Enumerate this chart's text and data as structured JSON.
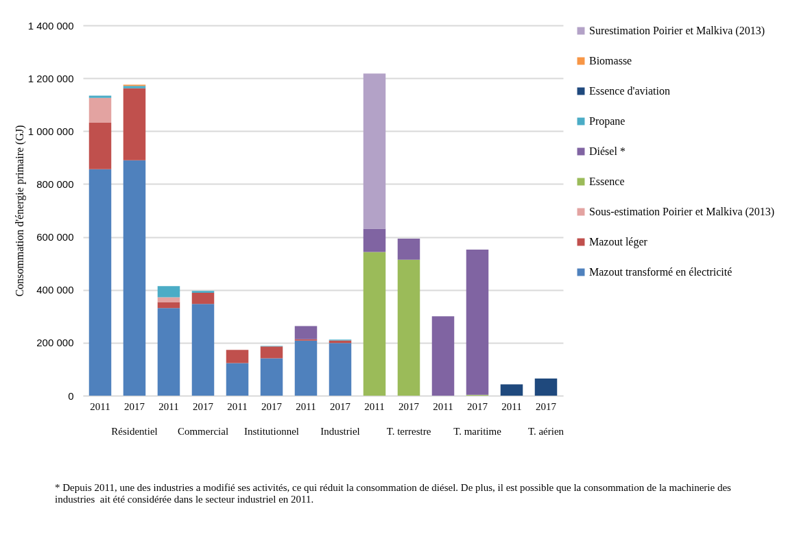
{
  "chart_data": {
    "type": "bar",
    "stacked": true,
    "ylabel": "Consommation d'énergie primaire (GJ)",
    "categories": [
      "2011",
      "2017",
      "2011",
      "2017",
      "2011",
      "2017",
      "2011",
      "2017",
      "2011",
      "2017",
      "2011",
      "2017",
      "2011",
      "2017"
    ],
    "series": [
      {
        "name": "Mazout transformé en électricité",
        "color": "#4f81bd",
        "values": [
          856000,
          890000,
          331000,
          347000,
          123000,
          141000,
          208000,
          199000,
          null,
          null,
          null,
          null,
          null,
          null
        ]
      },
      {
        "name": "Mazout léger",
        "color": "#c0504d",
        "values": [
          176000,
          272000,
          23000,
          42000,
          50000,
          45000,
          5000,
          10000,
          null,
          null,
          null,
          null,
          null,
          null
        ]
      },
      {
        "name": "Sous-estimation Poirier et Malkiva (2013)",
        "color": "#e3a3a1",
        "values": [
          94000,
          null,
          18000,
          null,
          null,
          null,
          null,
          null,
          null,
          null,
          null,
          null,
          null,
          null
        ]
      },
      {
        "name": "Essence",
        "color": "#9bbb59",
        "values": [
          null,
          null,
          null,
          null,
          null,
          null,
          null,
          null,
          543000,
          514000,
          null,
          3000,
          null,
          null
        ]
      },
      {
        "name": "Diésel *",
        "color": "#8064a2",
        "values": [
          null,
          null,
          null,
          null,
          null,
          null,
          50000,
          null,
          88000,
          80000,
          300000,
          549000,
          null,
          null
        ]
      },
      {
        "name": "Propane",
        "color": "#4bacc6",
        "values": [
          8000,
          9000,
          42000,
          7000,
          null,
          2000,
          null,
          3000,
          null,
          null,
          null,
          null,
          null,
          null
        ]
      },
      {
        "name": "Essence d'aviation",
        "color": "#1f497d",
        "values": [
          null,
          null,
          null,
          null,
          null,
          null,
          null,
          null,
          null,
          null,
          null,
          null,
          43000,
          65000
        ]
      },
      {
        "name": "Biomasse",
        "color": "#f79646",
        "values": [
          null,
          5000,
          null,
          null,
          null,
          null,
          null,
          null,
          null,
          null,
          null,
          null,
          null,
          null
        ]
      },
      {
        "name": "Surestimation Poirier et Malkiva (2013)",
        "color": "#b3a2c7",
        "values": [
          null,
          null,
          null,
          null,
          null,
          null,
          null,
          null,
          587000,
          null,
          null,
          null,
          null,
          null
        ]
      }
    ],
    "ylim": [
      0,
      1400000
    ],
    "yticks": [
      0,
      {
        "value": 200000,
        "label": "200 000"
      },
      {
        "value": 400000,
        "label": "400 000"
      },
      {
        "value": 600000,
        "label": "600 000"
      },
      {
        "value": 800000,
        "label": "800 000"
      },
      {
        "value": 1000000,
        "label": "1 000 000"
      },
      {
        "value": 1200000,
        "label": "1 200 000"
      },
      {
        "value": 1400000,
        "label": "1 400 000"
      }
    ],
    "grid": "y",
    "legend": "right",
    "annotations": [
      "Résidentiel",
      "Commercial",
      "Institutionnel",
      "Industriel",
      "T. terrestre",
      "T. maritime",
      "T. aérien",
      "* Depuis 2011, une des industries a modifié ses activités, ce qui réduit la consommation de diésel. De plus, il est possible que la consommation de la machinerie des industries  ait été considérée dans le secteur industriel en 2011."
    ]
  }
}
